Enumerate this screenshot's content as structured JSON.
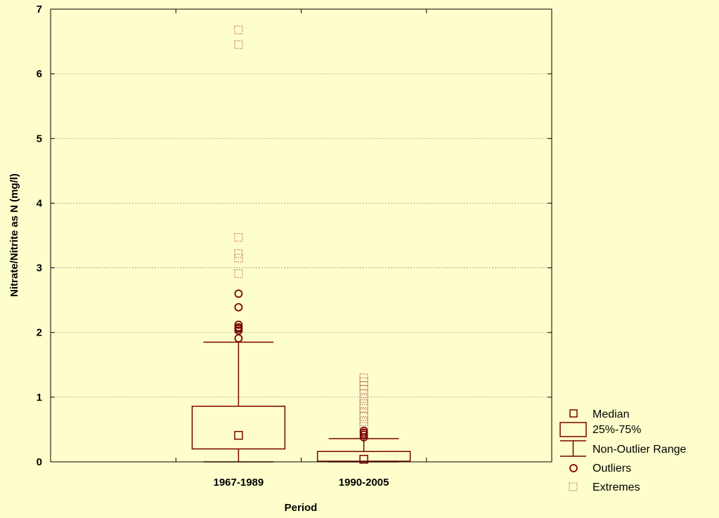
{
  "chart_data": {
    "type": "box",
    "title": "",
    "xlabel": "Period",
    "ylabel": "Nitrate/Nitrite as N (mg/l)",
    "ylim": [
      0,
      7
    ],
    "yticks": [
      "0",
      "1",
      "2",
      "3",
      "4",
      "5",
      "6",
      "7"
    ],
    "grid": true,
    "legend_position": "bottom-right",
    "color": "#7a0000",
    "categories": [
      "1967-1989",
      "1990-2005"
    ],
    "boxes": [
      {
        "label": "1967-1989",
        "median": 0.41,
        "q1": 0.2,
        "q3": 0.86,
        "whisker_low": 0.0,
        "whisker_high": 1.85,
        "outliers": [
          1.91,
          2.03,
          2.06,
          2.08,
          2.12,
          2.39,
          2.6
        ],
        "extremes": [
          2.91,
          3.15,
          3.22,
          3.47,
          6.45,
          6.68
        ]
      },
      {
        "label": "1990-2005",
        "median": 0.04,
        "q1": 0.01,
        "q3": 0.16,
        "whisker_low": 0.0,
        "whisker_high": 0.36,
        "outliers": [
          0.38,
          0.42,
          0.45,
          0.48
        ],
        "extremes": [
          0.55,
          0.62,
          0.7,
          0.76,
          0.83,
          0.9,
          0.98,
          1.05,
          1.12,
          1.18,
          1.24,
          1.3
        ]
      }
    ],
    "legend": [
      "Median",
      "25%-75%",
      "Non-Outlier Range",
      "Outliers",
      "Extremes"
    ]
  }
}
